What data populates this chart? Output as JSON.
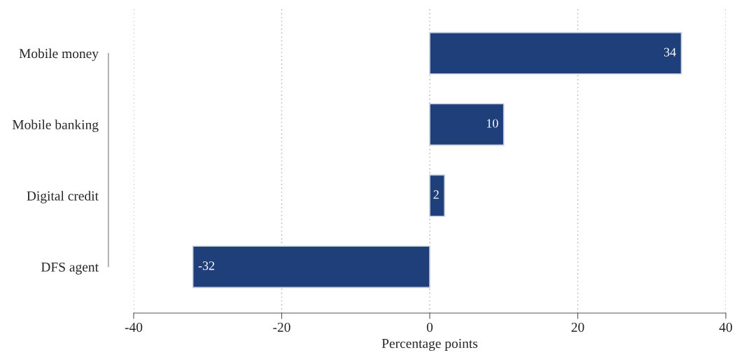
{
  "chart_data": {
    "type": "bar",
    "orientation": "horizontal",
    "categories": [
      "Mobile money",
      "Mobile banking",
      "Digital credit",
      "DFS agent"
    ],
    "values": [
      34,
      10,
      2,
      -32
    ],
    "color": "#1f3f7a",
    "xlim": [
      -40,
      40
    ],
    "xticks": [
      -40,
      -20,
      0,
      20,
      40
    ],
    "xlabel": "Percentage points",
    "grid": "x",
    "data_labels": true
  }
}
